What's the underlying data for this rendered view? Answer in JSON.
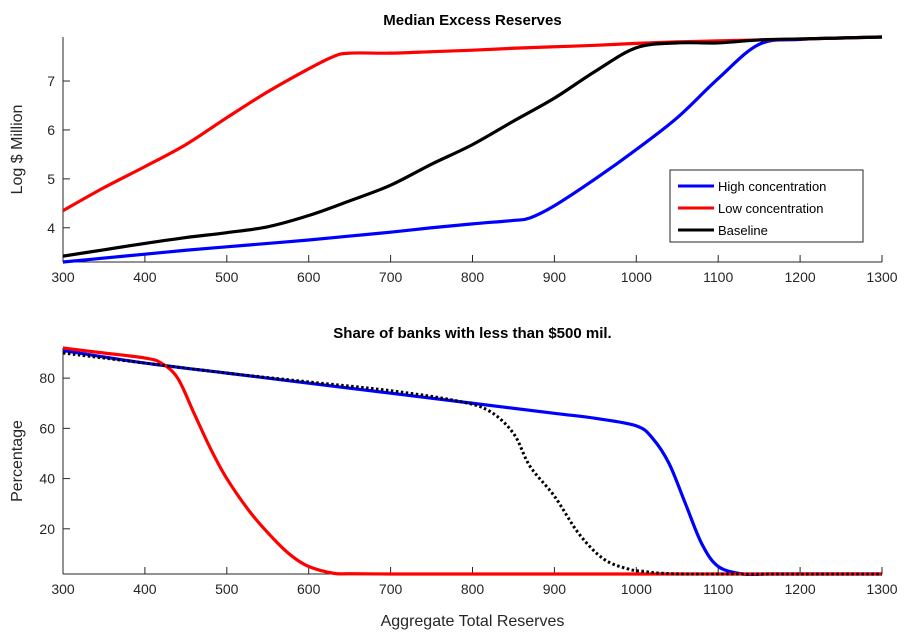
{
  "chart_data": [
    {
      "type": "line",
      "title": "Median Excess Reserves",
      "xlabel": "",
      "ylabel": "Log $ Million",
      "xlim": [
        300,
        1300
      ],
      "ylim": [
        3.3,
        7.9
      ],
      "xticks": [
        300,
        400,
        500,
        600,
        700,
        800,
        900,
        1000,
        1100,
        1200,
        1300
      ],
      "yticks": [
        4,
        5,
        6,
        7
      ],
      "grid": false,
      "legend_position": "right",
      "series": [
        {
          "name": "High concentration",
          "color": "#0000ff",
          "dash": "solid",
          "x": [
            300,
            350,
            400,
            450,
            500,
            550,
            600,
            650,
            700,
            750,
            800,
            850,
            870,
            900,
            950,
            1000,
            1050,
            1100,
            1150,
            1200,
            1250,
            1300
          ],
          "y": [
            3.3,
            3.38,
            3.46,
            3.54,
            3.61,
            3.68,
            3.75,
            3.83,
            3.91,
            4.0,
            4.08,
            4.15,
            4.2,
            4.45,
            5.0,
            5.6,
            6.25,
            7.05,
            7.75,
            7.85,
            7.88,
            7.9
          ]
        },
        {
          "name": "Low concentration",
          "color": "#ff0000",
          "dash": "solid",
          "x": [
            300,
            350,
            400,
            450,
            500,
            550,
            600,
            630,
            650,
            700,
            750,
            800,
            850,
            900,
            950,
            1000,
            1050,
            1100,
            1150,
            1200,
            1250,
            1300
          ],
          "y": [
            4.35,
            4.82,
            5.25,
            5.7,
            6.25,
            6.78,
            7.25,
            7.5,
            7.57,
            7.57,
            7.6,
            7.63,
            7.67,
            7.7,
            7.73,
            7.77,
            7.8,
            7.82,
            7.84,
            7.86,
            7.88,
            7.9
          ]
        },
        {
          "name": "Baseline",
          "color": "#000000",
          "dash": "solid",
          "x": [
            300,
            350,
            400,
            450,
            500,
            550,
            600,
            650,
            700,
            750,
            800,
            850,
            900,
            950,
            1000,
            1050,
            1100,
            1150,
            1200,
            1250,
            1300
          ],
          "y": [
            3.42,
            3.55,
            3.68,
            3.8,
            3.9,
            4.02,
            4.25,
            4.55,
            4.87,
            5.3,
            5.7,
            6.18,
            6.65,
            7.2,
            7.68,
            7.78,
            7.78,
            7.84,
            7.86,
            7.88,
            7.9
          ]
        }
      ]
    },
    {
      "type": "line",
      "title": "Share of banks with less than $500 mil.",
      "xlabel": "Aggregate Total Reserves",
      "ylabel": "Percentage",
      "xlim": [
        300,
        1300
      ],
      "ylim": [
        2,
        92
      ],
      "xticks": [
        300,
        400,
        500,
        600,
        700,
        800,
        900,
        1000,
        1100,
        1200,
        1300
      ],
      "yticks": [
        20,
        40,
        60,
        80
      ],
      "grid": false,
      "series": [
        {
          "color": "#0000ff",
          "dash": "solid",
          "x": [
            300,
            400,
            500,
            600,
            700,
            800,
            900,
            950,
            1000,
            1020,
            1040,
            1060,
            1080,
            1100,
            1130,
            1160,
            1200,
            1250,
            1300
          ],
          "y": [
            91,
            86,
            82,
            78,
            74,
            70,
            66,
            64,
            61,
            56,
            46,
            30,
            14,
            5,
            2,
            2,
            2,
            2,
            2
          ]
        },
        {
          "color": "#ff0000",
          "dash": "solid",
          "x": [
            300,
            350,
            400,
            420,
            440,
            460,
            480,
            500,
            530,
            560,
            580,
            600,
            630,
            650,
            700,
            800,
            900,
            1000,
            1100,
            1200,
            1300
          ],
          "y": [
            92,
            90,
            88,
            86,
            80,
            66,
            52,
            40,
            26,
            15,
            9,
            5,
            2.3,
            2.1,
            2,
            2,
            2,
            2,
            2,
            2,
            2
          ]
        },
        {
          "color": "#000000",
          "dash": "dotted",
          "x": [
            300,
            400,
            500,
            600,
            700,
            780,
            820,
            850,
            870,
            900,
            930,
            960,
            990,
            1010,
            1030,
            1060,
            1100,
            1200,
            1300
          ],
          "y": [
            90,
            86,
            82,
            78.5,
            75,
            71,
            67,
            58,
            45,
            33,
            18,
            8,
            4,
            3,
            2.3,
            2,
            2,
            2,
            2
          ]
        }
      ]
    }
  ]
}
